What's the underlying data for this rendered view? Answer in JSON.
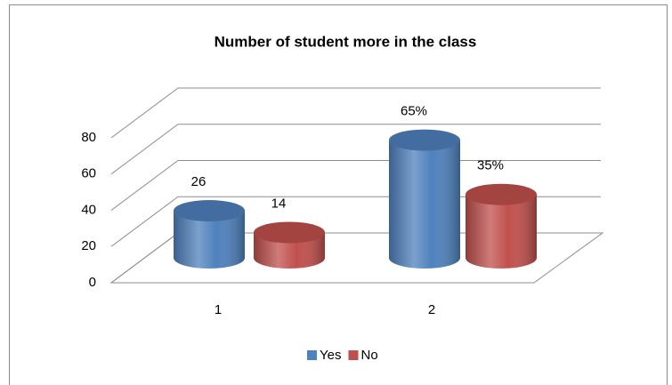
{
  "chart_data": {
    "type": "bar3d",
    "title": "Number of student more in the class",
    "categories": [
      "1",
      "2"
    ],
    "series": [
      {
        "name": "Yes",
        "color": "#4f81bd",
        "values": [
          26,
          65
        ],
        "value_labels": [
          "26",
          "65%"
        ]
      },
      {
        "name": "No",
        "color": "#c0504d",
        "values": [
          14,
          35
        ],
        "value_labels": [
          "14",
          "35%"
        ]
      }
    ],
    "ylim": [
      0,
      80
    ],
    "yticks": [
      0,
      20,
      40,
      60,
      80
    ],
    "grid": true,
    "legend": "bottom"
  }
}
